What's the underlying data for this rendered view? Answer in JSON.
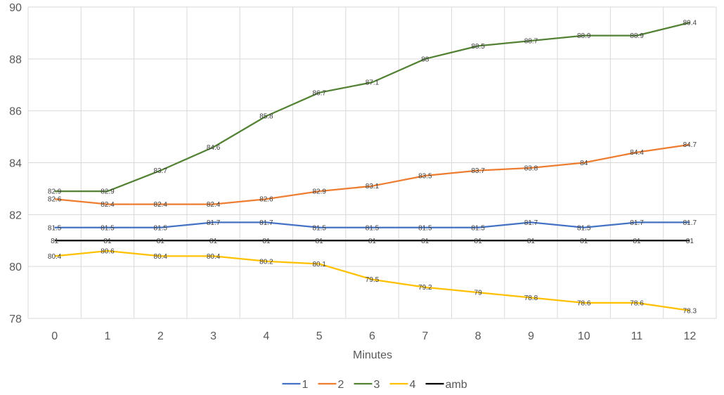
{
  "chart_data": {
    "type": "line",
    "title": "",
    "xlabel": "Minutes",
    "ylabel": "",
    "categories": [
      "0",
      "1",
      "2",
      "3",
      "4",
      "5",
      "6",
      "7",
      "8",
      "9",
      "10",
      "11",
      "12"
    ],
    "ylim": [
      78,
      90
    ],
    "yticks": [
      78,
      80,
      82,
      84,
      86,
      88,
      90
    ],
    "grid": true,
    "legend_position": "bottom",
    "data_labels": true,
    "series": [
      {
        "name": "1",
        "color": "#4472C4",
        "values": [
          81.5,
          81.5,
          81.5,
          81.7,
          81.7,
          81.5,
          81.5,
          81.5,
          81.5,
          81.7,
          81.5,
          81.7,
          81.7
        ]
      },
      {
        "name": "2",
        "color": "#ED7D31",
        "values": [
          82.6,
          82.4,
          82.4,
          82.4,
          82.6,
          82.9,
          83.1,
          83.5,
          83.7,
          83.8,
          84,
          84.4,
          84.7
        ]
      },
      {
        "name": "3",
        "color": "#548235",
        "values": [
          82.9,
          82.9,
          83.7,
          84.6,
          85.8,
          86.7,
          87.1,
          88,
          88.5,
          88.7,
          88.9,
          88.9,
          89.4
        ]
      },
      {
        "name": "4",
        "color": "#FFC000",
        "values": [
          80.4,
          80.6,
          80.4,
          80.4,
          80.2,
          80.1,
          79.5,
          79.2,
          79,
          78.8,
          78.6,
          78.6,
          78.3
        ]
      },
      {
        "name": "amb",
        "color": "#000000",
        "values": [
          81,
          81,
          81,
          81,
          81,
          81,
          81,
          81,
          81,
          81,
          81,
          81,
          81
        ]
      }
    ]
  }
}
